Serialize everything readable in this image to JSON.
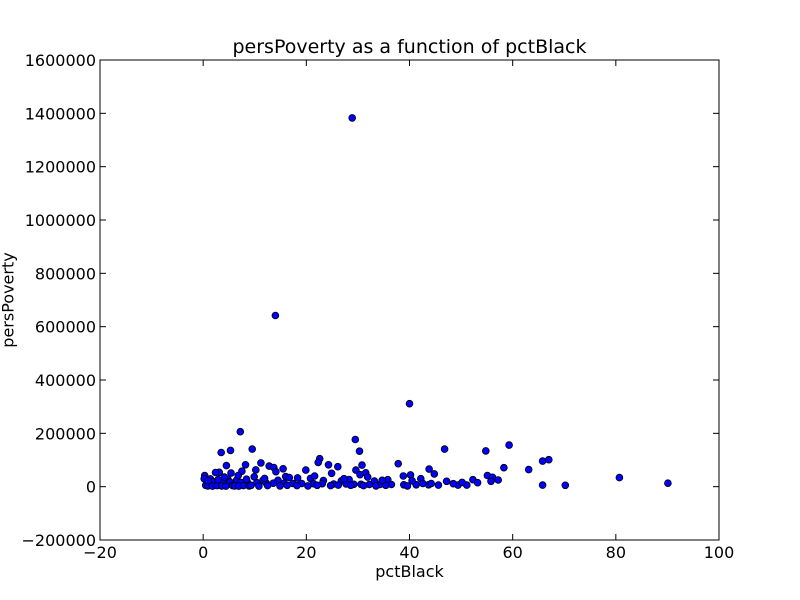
{
  "chart_data": {
    "type": "scatter",
    "title": "persPoverty as a function of pctBlack",
    "xlabel": "pctBlack",
    "ylabel": "persPoverty",
    "xlim": [
      -20,
      100
    ],
    "ylim": [
      -200000,
      1600000
    ],
    "xticks": [
      -20,
      0,
      20,
      40,
      60,
      80,
      100
    ],
    "yticks": [
      -200000,
      0,
      200000,
      400000,
      600000,
      800000,
      1000000,
      1200000,
      1400000,
      1600000
    ],
    "xtick_labels": [
      "−20",
      "0",
      "20",
      "40",
      "60",
      "80",
      "100"
    ],
    "ytick_labels": [
      "−200000",
      "0",
      "200000",
      "400000",
      "600000",
      "800000",
      "1000000",
      "1200000",
      "1400000",
      "1600000"
    ],
    "grid": false,
    "marker_color": "#0000ff",
    "series": [
      {
        "points": [
          [
            28.9,
            1383000
          ],
          [
            14.0,
            642000
          ],
          [
            40.0,
            311000
          ],
          [
            7.2,
            206000
          ],
          [
            29.5,
            177000
          ],
          [
            59.3,
            156000
          ],
          [
            46.8,
            141000
          ],
          [
            9.5,
            141000
          ],
          [
            5.3,
            136000
          ],
          [
            30.3,
            133000
          ],
          [
            54.8,
            134000
          ],
          [
            3.5,
            128000
          ],
          [
            22.6,
            105000
          ],
          [
            67.0,
            101000
          ],
          [
            65.8,
            96000
          ],
          [
            22.3,
            91000
          ],
          [
            11.2,
            89000
          ],
          [
            37.8,
            86000
          ],
          [
            24.3,
            82000
          ],
          [
            8.2,
            82000
          ],
          [
            30.8,
            81000
          ],
          [
            4.5,
            79000
          ],
          [
            12.8,
            77000
          ],
          [
            26.1,
            75000
          ],
          [
            13.7,
            72000
          ],
          [
            58.3,
            71000
          ],
          [
            15.5,
            67000
          ],
          [
            43.8,
            66000
          ],
          [
            63.1,
            64000
          ],
          [
            10.2,
            63000
          ],
          [
            29.6,
            62000
          ],
          [
            19.9,
            62000
          ],
          [
            7.5,
            58000
          ],
          [
            14.1,
            56000
          ],
          [
            3.1,
            54000
          ],
          [
            2.4,
            53000
          ],
          [
            5.4,
            51000
          ],
          [
            31.5,
            52000
          ],
          [
            24.9,
            50000
          ],
          [
            44.8,
            48000
          ],
          [
            40.2,
            44000
          ],
          [
            55.1,
            42000
          ],
          [
            0.3,
            42000
          ],
          [
            38.8,
            40000
          ],
          [
            16.0,
            38000
          ],
          [
            9.9,
            37000
          ],
          [
            31.9,
            36000
          ],
          [
            56.1,
            35000
          ],
          [
            80.7,
            34000
          ],
          [
            18.3,
            33000
          ],
          [
            20.8,
            31000
          ],
          [
            42.2,
            30000
          ],
          [
            1.4,
            29000
          ],
          [
            4.8,
            28000
          ],
          [
            28.3,
            27000
          ],
          [
            35.8,
            26000
          ],
          [
            52.3,
            26000
          ],
          [
            6.5,
            25000
          ],
          [
            11.6,
            24000
          ],
          [
            14.5,
            24000
          ],
          [
            23.3,
            23000
          ],
          [
            26.8,
            22000
          ],
          [
            33.2,
            21000
          ],
          [
            47.2,
            20000
          ],
          [
            1.2,
            19000
          ],
          [
            2.1,
            18000
          ],
          [
            3.8,
            17000
          ],
          [
            5.2,
            17000
          ],
          [
            7.3,
            16000
          ],
          [
            8.6,
            15000
          ],
          [
            10.4,
            15000
          ],
          [
            12.2,
            14000
          ],
          [
            13.6,
            13000
          ],
          [
            15.7,
            13000
          ],
          [
            17.4,
            12000
          ],
          [
            19.1,
            12000
          ],
          [
            21.4,
            11000
          ],
          [
            23.1,
            11000
          ],
          [
            25.3,
            10000
          ],
          [
            27.7,
            10000
          ],
          [
            29.2,
            9000
          ],
          [
            30.6,
            9000
          ],
          [
            32.2,
            8000
          ],
          [
            34.3,
            8000
          ],
          [
            36.5,
            8000
          ],
          [
            38.9,
            7000
          ],
          [
            41.3,
            7000
          ],
          [
            43.7,
            7000
          ],
          [
            45.6,
            6000
          ],
          [
            49.4,
            6000
          ],
          [
            51.1,
            6000
          ],
          [
            53.2,
            15000
          ],
          [
            57.2,
            25000
          ],
          [
            55.8,
            20000
          ],
          [
            0.5,
            5000
          ],
          [
            0.9,
            3000
          ],
          [
            1.8,
            2000
          ],
          [
            2.7,
            4000
          ],
          [
            3.6,
            3000
          ],
          [
            4.4,
            2000
          ],
          [
            5.7,
            4000
          ],
          [
            6.1,
            3000
          ],
          [
            6.9,
            2000
          ],
          [
            7.8,
            4000
          ],
          [
            8.9,
            3000
          ],
          [
            9.3,
            5000
          ],
          [
            10.8,
            2000
          ],
          [
            12.5,
            4000
          ],
          [
            14.9,
            3000
          ],
          [
            16.3,
            5000
          ],
          [
            18.2,
            4000
          ],
          [
            20.3,
            3000
          ],
          [
            22.1,
            5000
          ],
          [
            24.7,
            4000
          ],
          [
            26.2,
            6000
          ],
          [
            28.6,
            5000
          ],
          [
            31.1,
            4000
          ],
          [
            33.5,
            3000
          ],
          [
            35.4,
            5000
          ],
          [
            39.6,
            3000
          ],
          [
            44.2,
            12000
          ],
          [
            48.5,
            11000
          ],
          [
            50.2,
            16000
          ],
          [
            65.8,
            6000
          ],
          [
            70.2,
            5000
          ],
          [
            90.1,
            13000
          ],
          [
            0.2,
            30000
          ],
          [
            1.0,
            22000
          ],
          [
            2.9,
            26000
          ],
          [
            4.1,
            36000
          ],
          [
            6.8,
            42000
          ],
          [
            8.4,
            28000
          ],
          [
            11.9,
            31000
          ],
          [
            16.7,
            34000
          ],
          [
            21.6,
            40000
          ],
          [
            27.3,
            30000
          ],
          [
            30.4,
            45000
          ],
          [
            34.7,
            24000
          ],
          [
            40.5,
            22000
          ],
          [
            42.6,
            12000
          ]
        ]
      }
    ]
  }
}
